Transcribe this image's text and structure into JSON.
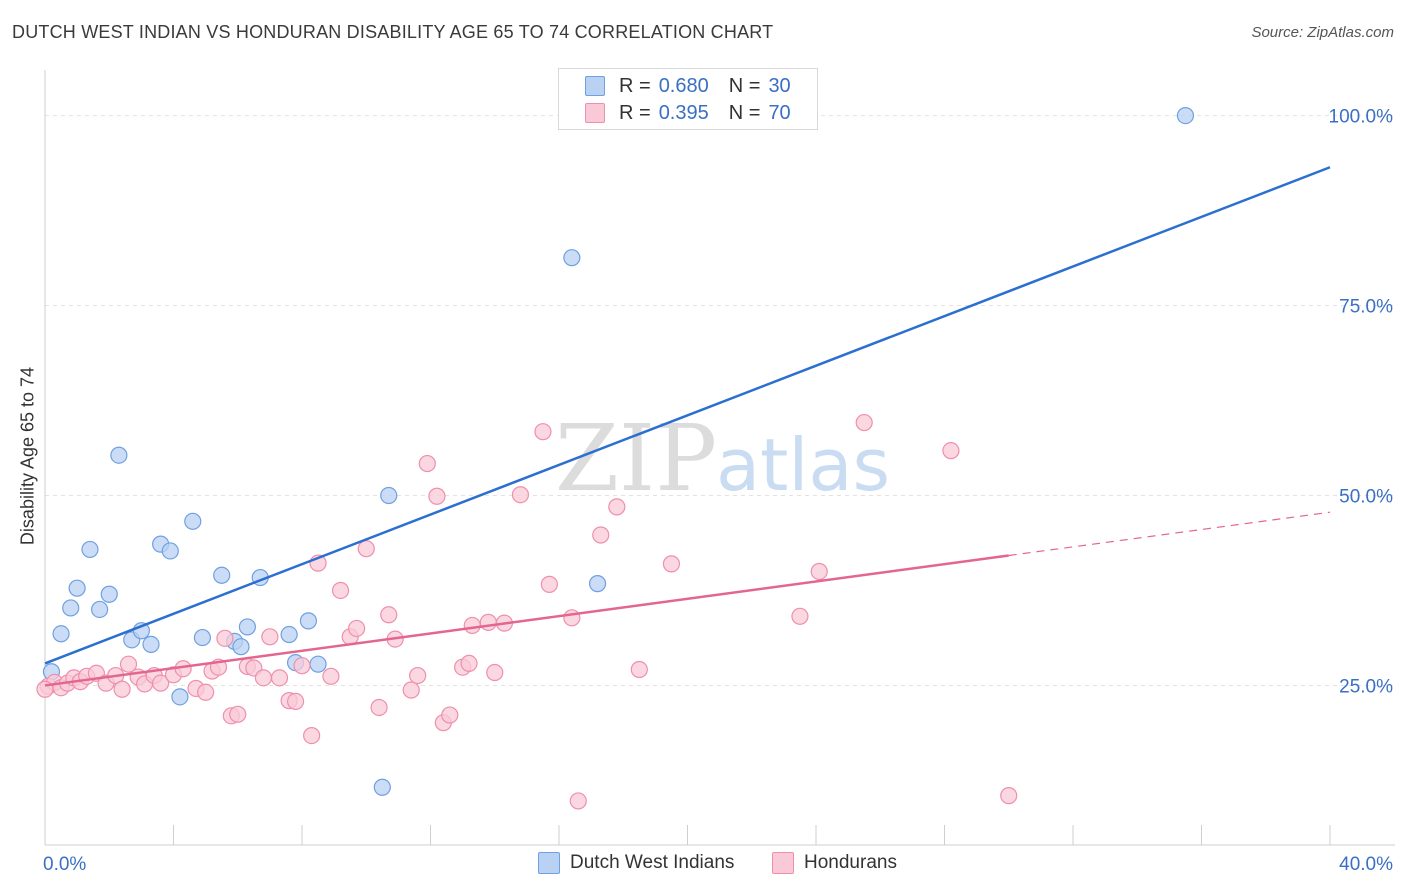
{
  "title": "DUTCH WEST INDIAN VS HONDURAN DISABILITY AGE 65 TO 74 CORRELATION CHART",
  "source": "Source: ZipAtlas.com",
  "watermark": {
    "zip": "ZIP",
    "atlas": "atlas"
  },
  "legend": {
    "r_label": "R =",
    "n_label": "N =",
    "rows": [
      {
        "r": "0.680",
        "n": "30"
      },
      {
        "r": "0.395",
        "n": "70"
      }
    ]
  },
  "chart_data": {
    "type": "scatter",
    "xlabel": "",
    "ylabel": "Disability Age 65 to 74",
    "xlim": [
      0,
      40
    ],
    "ylim": [
      4,
      106
    ],
    "x_tick_labels": [
      {
        "value": 0,
        "label": "0.0%"
      },
      {
        "value": 40,
        "label": "40.0%"
      }
    ],
    "y_tick_labels": [
      {
        "value": 25,
        "label": "25.0%"
      },
      {
        "value": 50,
        "label": "50.0%"
      },
      {
        "value": 75,
        "label": "75.0%"
      },
      {
        "value": 100,
        "label": "100.0%"
      }
    ],
    "grid": true,
    "legend_position": "top-center",
    "series": [
      {
        "name": "Dutch West Indians",
        "color": "#6fa0e0",
        "fill": "#b9d2f3",
        "trend": {
          "x": [
            0,
            40
          ],
          "y": [
            27.9,
            93.2
          ],
          "color": "#2b6fd0"
        },
        "points": [
          [
            0.2,
            26.8
          ],
          [
            0.5,
            31.8
          ],
          [
            0.8,
            35.2
          ],
          [
            1.0,
            37.8
          ],
          [
            1.4,
            42.9
          ],
          [
            1.7,
            35.0
          ],
          [
            2.0,
            37.0
          ],
          [
            2.3,
            55.3
          ],
          [
            2.7,
            31.0
          ],
          [
            3.0,
            32.2
          ],
          [
            3.3,
            30.4
          ],
          [
            3.6,
            43.6
          ],
          [
            3.9,
            42.7
          ],
          [
            4.2,
            23.5
          ],
          [
            4.6,
            46.6
          ],
          [
            4.9,
            31.3
          ],
          [
            5.5,
            39.5
          ],
          [
            5.9,
            30.8
          ],
          [
            6.1,
            30.1
          ],
          [
            6.3,
            32.7
          ],
          [
            6.7,
            39.2
          ],
          [
            7.6,
            31.7
          ],
          [
            7.8,
            28.0
          ],
          [
            8.2,
            33.5
          ],
          [
            8.5,
            27.8
          ],
          [
            10.5,
            11.6
          ],
          [
            10.7,
            50.0
          ],
          [
            16.4,
            81.3
          ],
          [
            17.2,
            38.4
          ],
          [
            35.5,
            100.0
          ]
        ]
      },
      {
        "name": "Hondurans",
        "color": "#ee8fad",
        "fill": "#f9c9d7",
        "trend": {
          "x": [
            0,
            30
          ],
          "y": [
            25.0,
            42.1
          ],
          "color": "#e36690"
        },
        "trend_dashed": {
          "x": [
            30,
            40
          ],
          "y": [
            42.1,
            47.8
          ]
        },
        "points": [
          [
            0.1,
            24.9
          ],
          [
            0.3,
            25.4
          ],
          [
            0.5,
            24.7
          ],
          [
            0.7,
            25.3
          ],
          [
            0.9,
            26.0
          ],
          [
            1.1,
            25.5
          ],
          [
            1.3,
            26.2
          ],
          [
            1.6,
            26.6
          ],
          [
            1.9,
            25.3
          ],
          [
            2.2,
            26.3
          ],
          [
            2.4,
            24.5
          ],
          [
            2.6,
            27.8
          ],
          [
            2.9,
            26.1
          ],
          [
            3.1,
            25.2
          ],
          [
            3.4,
            26.3
          ],
          [
            3.6,
            25.3
          ],
          [
            4.0,
            26.4
          ],
          [
            4.3,
            27.2
          ],
          [
            4.7,
            24.6
          ],
          [
            5.0,
            24.1
          ],
          [
            5.2,
            26.9
          ],
          [
            5.4,
            27.4
          ],
          [
            5.6,
            31.2
          ],
          [
            5.8,
            21.0
          ],
          [
            6.0,
            21.2
          ],
          [
            6.3,
            27.5
          ],
          [
            6.5,
            27.3
          ],
          [
            6.8,
            26.0
          ],
          [
            7.0,
            31.4
          ],
          [
            7.3,
            26.0
          ],
          [
            7.6,
            23.0
          ],
          [
            7.8,
            22.9
          ],
          [
            8.0,
            27.6
          ],
          [
            8.3,
            18.4
          ],
          [
            8.5,
            41.1
          ],
          [
            8.9,
            26.2
          ],
          [
            9.2,
            37.5
          ],
          [
            9.5,
            31.4
          ],
          [
            9.7,
            32.5
          ],
          [
            10.0,
            43.0
          ],
          [
            10.4,
            22.1
          ],
          [
            10.7,
            34.3
          ],
          [
            10.9,
            31.1
          ],
          [
            11.4,
            24.4
          ],
          [
            11.6,
            26.3
          ],
          [
            11.9,
            54.2
          ],
          [
            12.2,
            49.9
          ],
          [
            12.4,
            20.1
          ],
          [
            12.6,
            21.1
          ],
          [
            13.0,
            27.4
          ],
          [
            13.2,
            27.9
          ],
          [
            13.3,
            32.9
          ],
          [
            13.8,
            33.3
          ],
          [
            14.0,
            26.7
          ],
          [
            14.3,
            33.2
          ],
          [
            14.8,
            50.1
          ],
          [
            15.5,
            58.4
          ],
          [
            15.7,
            38.3
          ],
          [
            16.4,
            33.9
          ],
          [
            16.6,
            9.8
          ],
          [
            17.3,
            44.8
          ],
          [
            17.8,
            48.5
          ],
          [
            18.5,
            27.1
          ],
          [
            19.5,
            41.0
          ],
          [
            23.5,
            34.1
          ],
          [
            24.1,
            40.0
          ],
          [
            25.5,
            59.6
          ],
          [
            28.2,
            55.9
          ],
          [
            30.0,
            10.5
          ],
          [
            0.0,
            24.5
          ]
        ]
      }
    ]
  }
}
